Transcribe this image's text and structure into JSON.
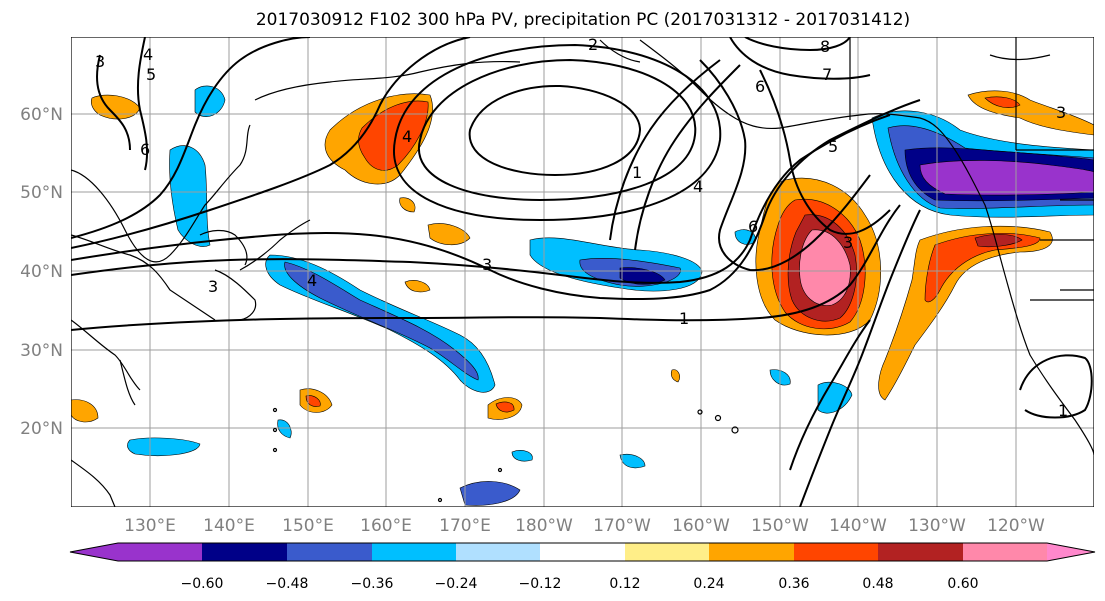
{
  "title": "2017030912 F102 300 hPa PV, precipitation PC (2017031312 - 2017031412)",
  "lat_labels": [
    "60°N",
    "50°N",
    "40°N",
    "30°N",
    "20°N"
  ],
  "lon_labels": [
    "130°E",
    "140°E",
    "150°E",
    "160°E",
    "170°E",
    "180°W",
    "170°W",
    "160°W",
    "150°W",
    "140°W",
    "130°W",
    "120°W"
  ],
  "colorbar": {
    "ticks": [
      "−0.60",
      "−0.48",
      "−0.36",
      "−0.24",
      "−0.12",
      "0.12",
      "0.24",
      "0.36",
      "0.48",
      "0.60"
    ],
    "colors": [
      "#9933cc",
      "#000088",
      "#3a5bcc",
      "#00bfff",
      "#b0e0ff",
      "#ffffff",
      "#ffee88",
      "#ffa500",
      "#ff4500",
      "#b22222",
      "#ff88aa",
      "#ff88cc"
    ]
  },
  "contour_labels": [
    {
      "text": "3",
      "key": "c3a"
    },
    {
      "text": "4",
      "key": "c4a"
    },
    {
      "text": "5",
      "key": "c5a"
    },
    {
      "text": "6",
      "key": "c6a"
    },
    {
      "text": "2",
      "key": "c2a"
    },
    {
      "text": "8",
      "key": "c8a"
    },
    {
      "text": "7",
      "key": "c7a"
    },
    {
      "text": "6",
      "key": "c6b"
    },
    {
      "text": "5",
      "key": "c5b"
    },
    {
      "text": "1",
      "key": "c1a"
    },
    {
      "text": "4",
      "key": "c4b"
    },
    {
      "text": "6",
      "key": "c6c"
    },
    {
      "text": "3",
      "key": "c3b"
    },
    {
      "text": "3",
      "key": "c3c"
    },
    {
      "text": "4",
      "key": "c4c"
    },
    {
      "text": "4",
      "key": "c4d"
    },
    {
      "text": "1",
      "key": "c1b"
    },
    {
      "text": "1",
      "key": "c1c"
    },
    {
      "text": "3",
      "key": "c3d"
    },
    {
      "text": "3",
      "key": "c3e"
    }
  ]
}
